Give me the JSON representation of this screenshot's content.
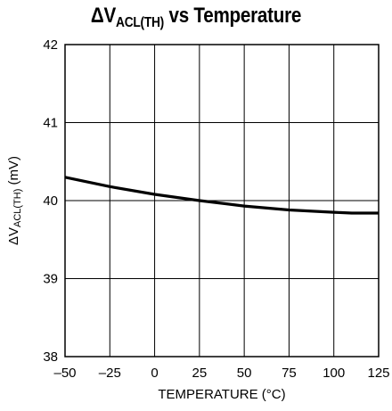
{
  "chart_data": {
    "type": "line",
    "title": {
      "symbol": "ΔV",
      "subscript": "ACL(TH)",
      "rest": " vs Temperature"
    },
    "xlabel": "TEMPERATURE (°C)",
    "ylabel": {
      "symbol": "ΔV",
      "subscript": "ACL(TH)",
      "rest": " (mV)"
    },
    "xlim": [
      -50,
      125
    ],
    "ylim": [
      38,
      42
    ],
    "x_ticks": [
      -50,
      -25,
      0,
      25,
      50,
      75,
      100,
      125
    ],
    "x_tick_labels": [
      "–50",
      "–25",
      "0",
      "25",
      "50",
      "75",
      "100",
      "125"
    ],
    "y_ticks": [
      38,
      39,
      40,
      41,
      42
    ],
    "y_tick_labels": [
      "38",
      "39",
      "40",
      "41",
      "42"
    ],
    "grid": true,
    "series": [
      {
        "x": [
          -50,
          -25,
          0,
          25,
          50,
          75,
          100,
          110,
          125
        ],
        "y": [
          40.3,
          40.18,
          40.08,
          40.0,
          39.93,
          39.88,
          39.85,
          39.84,
          39.84
        ]
      }
    ],
    "colors": {
      "line": "#000000",
      "grid": "#000000",
      "background": "#ffffff"
    }
  }
}
